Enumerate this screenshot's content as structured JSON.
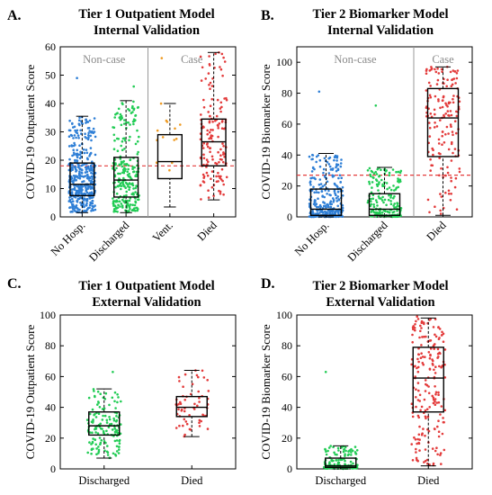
{
  "chart_data": [
    {
      "panel": "A.",
      "type": "box",
      "title": [
        "Tier 1 Outpatient Model",
        "Internal Validation"
      ],
      "ylabel": "COVID-19 Outpatient Score",
      "ylim": [
        0,
        60
      ],
      "yticks": [
        0,
        10,
        20,
        30,
        40,
        50,
        60
      ],
      "categories": [
        "No Hosp.",
        "Discharged",
        "Vent.",
        "Died"
      ],
      "groups": [
        {
          "label": "Non-case",
          "categories": [
            "No Hosp.",
            "Discharged"
          ]
        },
        {
          "label": "Case",
          "categories": [
            "Vent.",
            "Died"
          ]
        }
      ],
      "threshold": 18,
      "boxes": [
        {
          "category": "No Hosp.",
          "color": "#2f7fd6",
          "whisker_low": 1.5,
          "q1": 7.5,
          "median": 11.5,
          "q3": 19,
          "whisker_high": 35.5,
          "points": 420,
          "max_point": 49
        },
        {
          "category": "Discharged",
          "color": "#22cc55",
          "whisker_low": 1.5,
          "q1": 7,
          "median": 13,
          "q3": 21,
          "whisker_high": 41,
          "points": 260,
          "max_point": 46
        },
        {
          "category": "Vent.",
          "color": "#ee9a22",
          "whisker_low": 3.5,
          "q1": 13.5,
          "median": 19.5,
          "q3": 29,
          "whisker_high": 40,
          "points": 14,
          "max_point": 56
        },
        {
          "category": "Died",
          "color": "#e33b3b",
          "whisker_low": 6,
          "q1": 18,
          "median": 26.5,
          "q3": 34.5,
          "whisker_high": 58,
          "points": 150,
          "max_point": 58
        }
      ]
    },
    {
      "panel": "B.",
      "type": "box",
      "title": [
        "Tier 2 Biomarker Model",
        "Internal Validation"
      ],
      "ylabel": "COVID-19 Biomarker Score",
      "ylim": [
        0,
        110
      ],
      "yticks": [
        0,
        20,
        40,
        60,
        80,
        100
      ],
      "categories": [
        "No Hosp.",
        "Discharged",
        "Died"
      ],
      "groups": [
        {
          "label": "Non-case",
          "categories": [
            "No Hosp.",
            "Discharged"
          ]
        },
        {
          "label": "Case",
          "categories": [
            "Died"
          ]
        }
      ],
      "threshold": 27,
      "boxes": [
        {
          "category": "No Hosp.",
          "color": "#2f7fd6",
          "whisker_low": 0,
          "q1": 1,
          "median": 5,
          "q3": 18,
          "whisker_high": 41,
          "points": 320,
          "max_point": 81
        },
        {
          "category": "Discharged",
          "color": "#22cc55",
          "whisker_low": 0,
          "q1": 1,
          "median": 5,
          "q3": 15,
          "whisker_high": 32,
          "points": 190,
          "max_point": 72
        },
        {
          "category": "Died",
          "color": "#e33b3b",
          "whisker_low": 1,
          "q1": 39,
          "median": 64,
          "q3": 83,
          "whisker_high": 97,
          "points": 160,
          "max_point": 97
        }
      ]
    },
    {
      "panel": "C.",
      "type": "box",
      "title": [
        "Tier 1 Outpatient Model",
        "External Validation"
      ],
      "ylabel": "COVID-19 Outpatient Score",
      "ylim": [
        0,
        100
      ],
      "yticks": [
        0,
        20,
        40,
        60,
        80,
        100
      ],
      "categories": [
        "Discharged",
        "Died"
      ],
      "boxes": [
        {
          "category": "Discharged",
          "color": "#22cc55",
          "whisker_low": 7,
          "q1": 22,
          "median": 28,
          "q3": 37,
          "whisker_high": 52,
          "points": 150,
          "max_point": 63
        },
        {
          "category": "Died",
          "color": "#e33b3b",
          "whisker_low": 21,
          "q1": 34,
          "median": 40,
          "q3": 47,
          "whisker_high": 64,
          "points": 60,
          "max_point": 64
        }
      ]
    },
    {
      "panel": "D.",
      "type": "box",
      "title": [
        "Tier 2 Biomarker Model",
        "External Validation"
      ],
      "ylabel": "COVID-19 Biomarker Score",
      "ylim": [
        0,
        100
      ],
      "yticks": [
        0,
        20,
        40,
        60,
        80,
        100
      ],
      "categories": [
        "Discharged",
        "Died"
      ],
      "boxes": [
        {
          "category": "Discharged",
          "color": "#22cc55",
          "whisker_low": 0,
          "q1": 1,
          "median": 2,
          "q3": 7,
          "whisker_high": 15,
          "points": 150,
          "max_point": 63
        },
        {
          "category": "Died",
          "color": "#e33b3b",
          "whisker_low": 2,
          "q1": 37,
          "median": 59,
          "q3": 79,
          "whisker_high": 98,
          "points": 200,
          "max_point": 99
        }
      ]
    }
  ]
}
